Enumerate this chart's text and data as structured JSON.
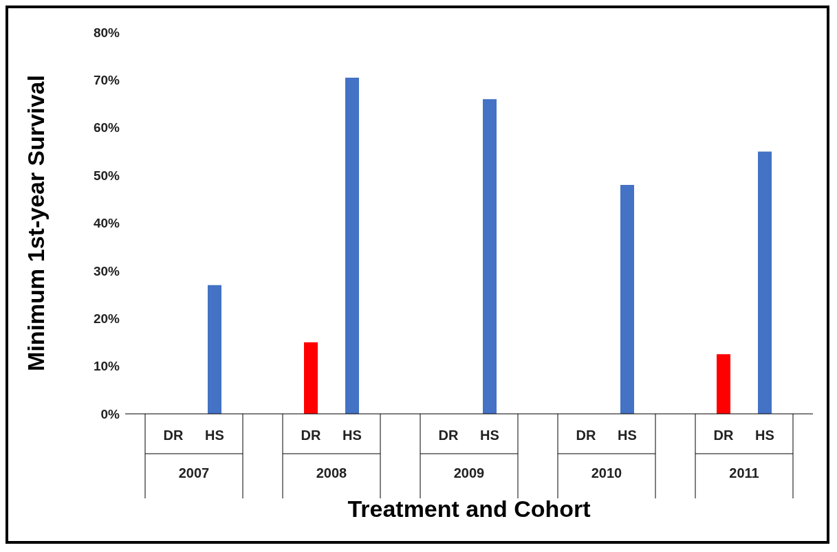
{
  "chart_data": {
    "type": "bar",
    "xlabel": "Treatment and Cohort",
    "ylabel": "Minimum  1st-year Survival",
    "categories": [
      "2007",
      "2008",
      "2009",
      "2010",
      "2011"
    ],
    "series": [
      {
        "name": "DR",
        "color": "#ff0000",
        "values": [
          null,
          15,
          null,
          null,
          12.5
        ]
      },
      {
        "name": "HS",
        "color": "#4472c4",
        "values": [
          27,
          70.5,
          66,
          48,
          55
        ]
      }
    ],
    "ylim": [
      0,
      80
    ],
    "yticks": [
      {
        "value": 0,
        "label": "0%"
      },
      {
        "value": 10,
        "label": "10%"
      },
      {
        "value": 20,
        "label": "20%"
      },
      {
        "value": 30,
        "label": "30%"
      },
      {
        "value": 40,
        "label": "40%"
      },
      {
        "value": 50,
        "label": "50%"
      },
      {
        "value": 60,
        "label": "60%"
      },
      {
        "value": 70,
        "label": "70%"
      },
      {
        "value": 80,
        "label": "80%"
      }
    ],
    "grid": false,
    "legend": false
  }
}
